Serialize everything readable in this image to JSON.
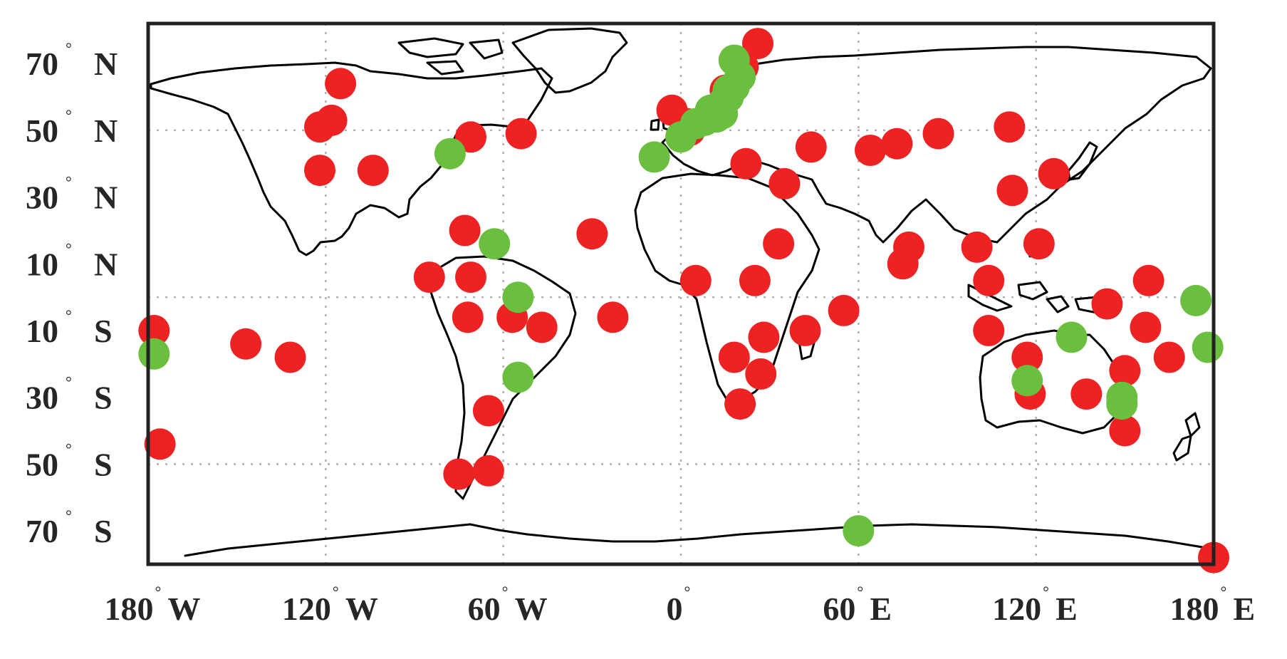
{
  "chart_data": {
    "type": "scatter",
    "title": "",
    "xlabel": "",
    "ylabel": "",
    "projection": "equirectangular",
    "xlim": [
      -180,
      180
    ],
    "ylim": [
      -80,
      82
    ],
    "grid": true,
    "legend": "none",
    "x_ticks": [
      {
        "value": -180,
        "num": "180",
        "hem": "W"
      },
      {
        "value": -120,
        "num": "120",
        "hem": "W"
      },
      {
        "value": -60,
        "num": "60",
        "hem": "W"
      },
      {
        "value": 0,
        "num": "0",
        "hem": ""
      },
      {
        "value": 60,
        "num": "60",
        "hem": "E"
      },
      {
        "value": 120,
        "num": "120",
        "hem": "E"
      },
      {
        "value": 180,
        "num": "180",
        "hem": "E"
      }
    ],
    "y_ticks": [
      {
        "value": 70,
        "num": "70",
        "hem": "N"
      },
      {
        "value": 50,
        "num": "50",
        "hem": "N"
      },
      {
        "value": 30,
        "num": "30",
        "hem": "N"
      },
      {
        "value": 10,
        "num": "10",
        "hem": "N"
      },
      {
        "value": -10,
        "num": "10",
        "hem": "S"
      },
      {
        "value": -30,
        "num": "30",
        "hem": "S"
      },
      {
        "value": -50,
        "num": "50",
        "hem": "S"
      },
      {
        "value": -70,
        "num": "70",
        "hem": "S"
      }
    ],
    "series": [
      {
        "color": "#ee2222",
        "points": [
          [
            -115,
            64
          ],
          [
            -118,
            53
          ],
          [
            -122,
            51
          ],
          [
            -122,
            38
          ],
          [
            -104,
            38
          ],
          [
            -71,
            48
          ],
          [
            -54,
            49
          ],
          [
            -73,
            20
          ],
          [
            -85,
            6
          ],
          [
            -71,
            6
          ],
          [
            -72,
            -6
          ],
          [
            -57,
            -6
          ],
          [
            -47,
            -9
          ],
          [
            -65,
            -34
          ],
          [
            -75,
            -53
          ],
          [
            -65,
            -52
          ],
          [
            -178,
            -10
          ],
          [
            -176,
            -44
          ],
          [
            -147,
            -14
          ],
          [
            -132,
            -18
          ],
          [
            -30,
            19
          ],
          [
            -23,
            -6
          ],
          [
            3,
            50
          ],
          [
            5,
            5
          ],
          [
            18,
            -18
          ],
          [
            20,
            -32
          ],
          [
            27,
            -23
          ],
          [
            28,
            -12
          ],
          [
            25,
            5
          ],
          [
            42,
            -10
          ],
          [
            55,
            -4
          ],
          [
            33,
            16
          ],
          [
            35,
            34
          ],
          [
            22,
            40
          ],
          [
            44,
            45
          ],
          [
            64,
            44
          ],
          [
            73,
            46
          ],
          [
            87,
            49
          ],
          [
            77,
            15
          ],
          [
            75,
            10
          ],
          [
            100,
            15
          ],
          [
            104,
            5
          ],
          [
            104,
            -10
          ],
          [
            112,
            32
          ],
          [
            121,
            16
          ],
          [
            126,
            37
          ],
          [
            111,
            51
          ],
          [
            117,
            -18
          ],
          [
            118,
            -29
          ],
          [
            137,
            -29
          ],
          [
            150,
            -22
          ],
          [
            150,
            -40
          ],
          [
            144,
            -2
          ],
          [
            157,
            -9
          ],
          [
            165,
            -18
          ],
          [
            158,
            5
          ],
          [
            21,
            69
          ],
          [
            26,
            76
          ],
          [
            15,
            62
          ],
          [
            -3,
            56
          ],
          [
            2,
            52
          ],
          [
            180,
            -78
          ]
        ]
      },
      {
        "color": "#6abf3f",
        "points": [
          [
            -78,
            43
          ],
          [
            -63,
            16
          ],
          [
            -55,
            0
          ],
          [
            -55,
            -24
          ],
          [
            -178,
            -17
          ],
          [
            -9,
            42
          ],
          [
            0,
            48
          ],
          [
            5,
            52
          ],
          [
            8,
            53
          ],
          [
            12,
            54
          ],
          [
            10,
            56
          ],
          [
            14,
            58
          ],
          [
            16,
            60
          ],
          [
            18,
            63
          ],
          [
            20,
            66
          ],
          [
            18,
            71
          ],
          [
            16,
            62
          ],
          [
            11,
            56
          ],
          [
            14,
            55
          ],
          [
            60,
            -70
          ],
          [
            117,
            -25
          ],
          [
            132,
            -12
          ],
          [
            149,
            -30
          ],
          [
            149,
            -32
          ],
          [
            174,
            -1
          ],
          [
            178,
            -15
          ]
        ]
      }
    ]
  }
}
